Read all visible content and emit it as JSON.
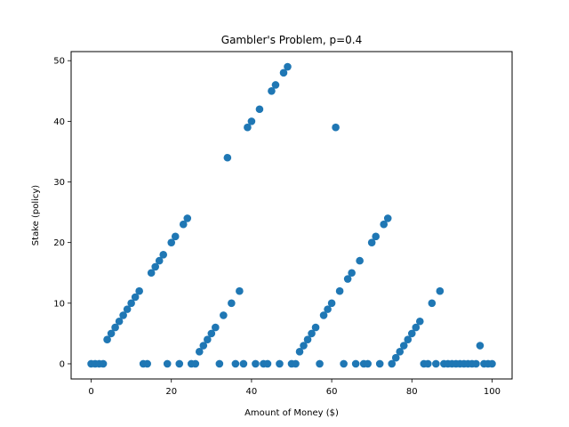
{
  "chart_data": {
    "type": "scatter",
    "title": "Gambler's Problem, p=0.4",
    "xlabel": "Amount of Money ($)",
    "ylabel": "Stake (policy)",
    "xlim": [
      -5,
      105
    ],
    "ylim": [
      -2.5,
      51.5
    ],
    "xticks": [
      0,
      20,
      40,
      60,
      80,
      100
    ],
    "yticks": [
      0,
      10,
      20,
      30,
      40,
      50
    ],
    "grid": false,
    "marker_color": "#1f77b4",
    "series": [
      {
        "name": "policy",
        "points": [
          [
            0,
            0
          ],
          [
            1,
            0
          ],
          [
            2,
            0
          ],
          [
            3,
            0
          ],
          [
            4,
            4
          ],
          [
            5,
            5
          ],
          [
            6,
            6
          ],
          [
            7,
            7
          ],
          [
            8,
            8
          ],
          [
            9,
            9
          ],
          [
            10,
            10
          ],
          [
            11,
            11
          ],
          [
            12,
            12
          ],
          [
            13,
            0
          ],
          [
            14,
            0
          ],
          [
            15,
            15
          ],
          [
            16,
            16
          ],
          [
            17,
            17
          ],
          [
            18,
            18
          ],
          [
            19,
            0
          ],
          [
            20,
            20
          ],
          [
            21,
            21
          ],
          [
            22,
            0
          ],
          [
            23,
            23
          ],
          [
            24,
            24
          ],
          [
            25,
            0
          ],
          [
            26,
            0
          ],
          [
            27,
            2
          ],
          [
            28,
            3
          ],
          [
            29,
            4
          ],
          [
            30,
            5
          ],
          [
            31,
            6
          ],
          [
            32,
            0
          ],
          [
            33,
            8
          ],
          [
            34,
            34
          ],
          [
            35,
            10
          ],
          [
            36,
            0
          ],
          [
            37,
            12
          ],
          [
            38,
            0
          ],
          [
            39,
            39
          ],
          [
            40,
            40
          ],
          [
            41,
            0
          ],
          [
            42,
            42
          ],
          [
            43,
            0
          ],
          [
            44,
            0
          ],
          [
            45,
            45
          ],
          [
            46,
            46
          ],
          [
            47,
            0
          ],
          [
            48,
            48
          ],
          [
            49,
            49
          ],
          [
            50,
            0
          ],
          [
            51,
            0
          ],
          [
            52,
            2
          ],
          [
            53,
            3
          ],
          [
            54,
            4
          ],
          [
            55,
            5
          ],
          [
            56,
            6
          ],
          [
            57,
            0
          ],
          [
            58,
            8
          ],
          [
            59,
            9
          ],
          [
            60,
            10
          ],
          [
            61,
            39
          ],
          [
            62,
            12
          ],
          [
            63,
            0
          ],
          [
            64,
            14
          ],
          [
            65,
            15
          ],
          [
            66,
            0
          ],
          [
            67,
            17
          ],
          [
            68,
            0
          ],
          [
            69,
            0
          ],
          [
            70,
            20
          ],
          [
            71,
            21
          ],
          [
            72,
            0
          ],
          [
            73,
            23
          ],
          [
            74,
            24
          ],
          [
            75,
            0
          ],
          [
            76,
            1
          ],
          [
            77,
            2
          ],
          [
            78,
            3
          ],
          [
            79,
            4
          ],
          [
            80,
            5
          ],
          [
            81,
            6
          ],
          [
            82,
            7
          ],
          [
            83,
            0
          ],
          [
            84,
            0
          ],
          [
            85,
            10
          ],
          [
            86,
            0
          ],
          [
            87,
            12
          ],
          [
            88,
            0
          ],
          [
            89,
            0
          ],
          [
            90,
            0
          ],
          [
            91,
            0
          ],
          [
            92,
            0
          ],
          [
            93,
            0
          ],
          [
            94,
            0
          ],
          [
            95,
            0
          ],
          [
            96,
            0
          ],
          [
            97,
            3
          ],
          [
            98,
            0
          ],
          [
            99,
            0
          ],
          [
            100,
            0
          ]
        ]
      }
    ]
  }
}
